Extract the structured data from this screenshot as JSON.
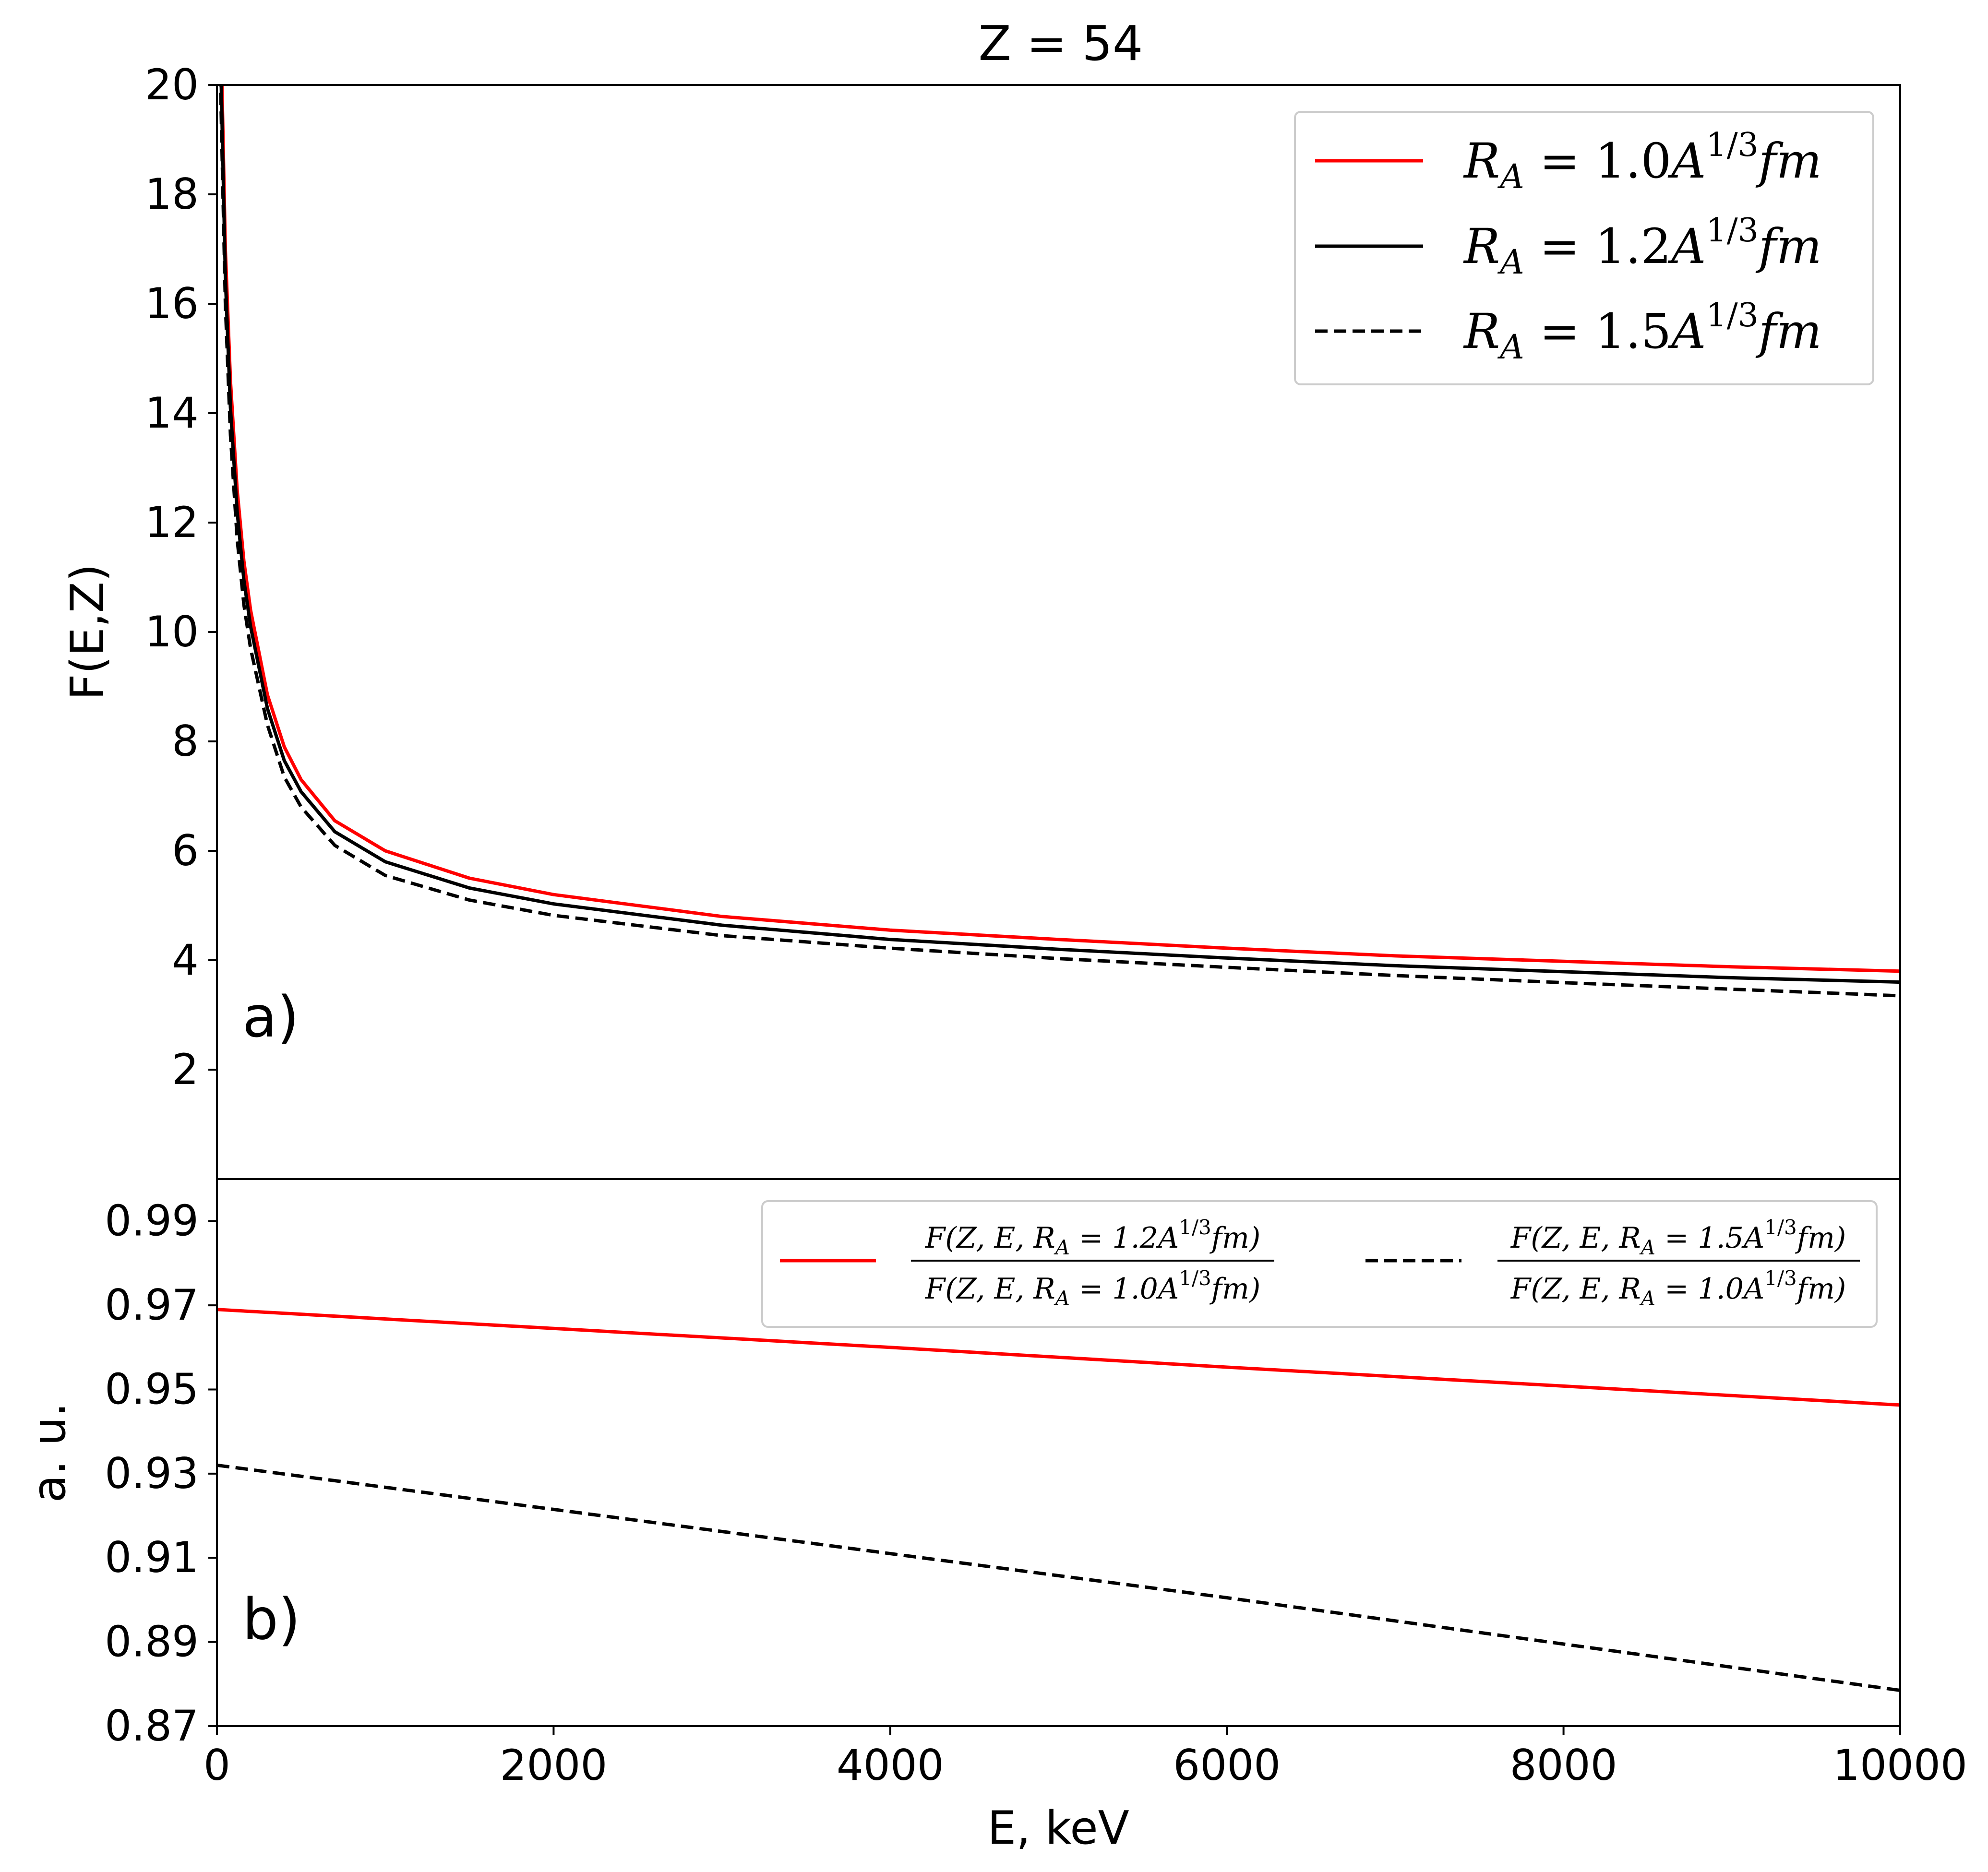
{
  "figure_title": "Z = 54",
  "chart_data": [
    {
      "type": "line",
      "panel_label": "a)",
      "ylabel": "F(E,Z)",
      "xlabel": "",
      "xlim": [
        0,
        10000
      ],
      "ylim": [
        0,
        20
      ],
      "yticks": [
        2,
        4,
        6,
        8,
        10,
        12,
        14,
        16,
        18,
        20
      ],
      "legend_position": "top-right",
      "series": [
        {
          "name": "R_A = 1.0A^{1/3}fm",
          "legend": {
            "var": "R",
            "sub": "A",
            "eq": " = 1.0",
            "base": "A",
            "sup": "1/3",
            "unit": "fm"
          },
          "color": "#ff0000",
          "dash": "solid",
          "points": [
            [
              20,
              21.5
            ],
            [
              50,
              17.0
            ],
            [
              80,
              14.6
            ],
            [
              120,
              12.6
            ],
            [
              160,
              11.3
            ],
            [
              200,
              10.4
            ],
            [
              300,
              8.85
            ],
            [
              400,
              7.9
            ],
            [
              500,
              7.3
            ],
            [
              700,
              6.55
            ],
            [
              1000,
              6.0
            ],
            [
              1500,
              5.5
            ],
            [
              2000,
              5.2
            ],
            [
              3000,
              4.8
            ],
            [
              4000,
              4.55
            ],
            [
              5000,
              4.38
            ],
            [
              6000,
              4.22
            ],
            [
              7000,
              4.08
            ],
            [
              8000,
              3.98
            ],
            [
              9000,
              3.88
            ],
            [
              10000,
              3.8
            ]
          ]
        },
        {
          "name": "R_A = 1.2A^{1/3}fm",
          "legend": {
            "var": "R",
            "sub": "A",
            "eq": " = 1.2",
            "base": "A",
            "sup": "1/3",
            "unit": "fm"
          },
          "color": "#000000",
          "dash": "solid",
          "points": [
            [
              20,
              20.8
            ],
            [
              50,
              16.5
            ],
            [
              80,
              14.1
            ],
            [
              120,
              12.2
            ],
            [
              160,
              10.95
            ],
            [
              200,
              10.1
            ],
            [
              300,
              8.6
            ],
            [
              400,
              7.65
            ],
            [
              500,
              7.08
            ],
            [
              700,
              6.35
            ],
            [
              1000,
              5.8
            ],
            [
              1500,
              5.32
            ],
            [
              2000,
              5.03
            ],
            [
              3000,
              4.64
            ],
            [
              4000,
              4.38
            ],
            [
              5000,
              4.2
            ],
            [
              6000,
              4.04
            ],
            [
              7000,
              3.9
            ],
            [
              8000,
              3.79
            ],
            [
              9000,
              3.68
            ],
            [
              10000,
              3.6
            ]
          ]
        },
        {
          "name": "R_A = 1.5A^{1/3}fm",
          "legend": {
            "var": "R",
            "sub": "A",
            "eq": " = 1.5",
            "base": "A",
            "sup": "1/3",
            "unit": "fm"
          },
          "color": "#000000",
          "dash": "dashed",
          "points": [
            [
              20,
              20.2
            ],
            [
              50,
              16.0
            ],
            [
              80,
              13.6
            ],
            [
              120,
              11.7
            ],
            [
              160,
              10.5
            ],
            [
              200,
              9.7
            ],
            [
              300,
              8.3
            ],
            [
              400,
              7.35
            ],
            [
              500,
              6.8
            ],
            [
              700,
              6.1
            ],
            [
              1000,
              5.55
            ],
            [
              1500,
              5.1
            ],
            [
              2000,
              4.82
            ],
            [
              3000,
              4.45
            ],
            [
              4000,
              4.22
            ],
            [
              5000,
              4.03
            ],
            [
              6000,
              3.87
            ],
            [
              7000,
              3.72
            ],
            [
              8000,
              3.59
            ],
            [
              9000,
              3.47
            ],
            [
              10000,
              3.35
            ]
          ]
        }
      ]
    },
    {
      "type": "line",
      "panel_label": "b)",
      "ylabel": "a. u.",
      "xlabel": "E, keV",
      "xlim": [
        0,
        10000
      ],
      "ylim": [
        0.87,
        1.0
      ],
      "xticks": [
        0,
        2000,
        4000,
        6000,
        8000,
        10000
      ],
      "yticks": [
        0.87,
        0.89,
        0.91,
        0.93,
        0.95,
        0.97,
        0.99
      ],
      "legend_position": "top-right",
      "series": [
        {
          "name": "F(Z,E,R_A=1.2A^{1/3}fm) / F(Z,E,R_A=1.0A^{1/3}fm)",
          "legend": {
            "num": "F(Z, E, R",
            "num_sub": "A",
            "num_eq": " = 1.2A",
            "sup": "1/3",
            "num_tail": "fm)",
            "den": "F(Z, E, R",
            "den_sub": "A",
            "den_eq": " = 1.0A",
            "den_tail": "fm)"
          },
          "color": "#ff0000",
          "dash": "solid",
          "points": [
            [
              0,
              0.969
            ],
            [
              2000,
              0.9645
            ],
            [
              4000,
              0.96
            ],
            [
              6000,
              0.9553
            ],
            [
              8000,
              0.9508
            ],
            [
              10000,
              0.9463
            ]
          ]
        },
        {
          "name": "F(Z,E,R_A=1.5A^{1/3}fm) / F(Z,E,R_A=1.0A^{1/3}fm)",
          "legend": {
            "num": "F(Z, E, R",
            "num_sub": "A",
            "num_eq": " = 1.5A",
            "sup": "1/3",
            "num_tail": "fm)",
            "den": "F(Z, E, R",
            "den_sub": "A",
            "den_eq": " = 1.0A",
            "den_tail": "fm)"
          },
          "color": "#000000",
          "dash": "dashed",
          "points": [
            [
              0,
              0.932
            ],
            [
              2000,
              0.9215
            ],
            [
              4000,
              0.911
            ],
            [
              6000,
              0.9005
            ],
            [
              8000,
              0.8895
            ],
            [
              10000,
              0.8785
            ]
          ]
        }
      ]
    }
  ]
}
